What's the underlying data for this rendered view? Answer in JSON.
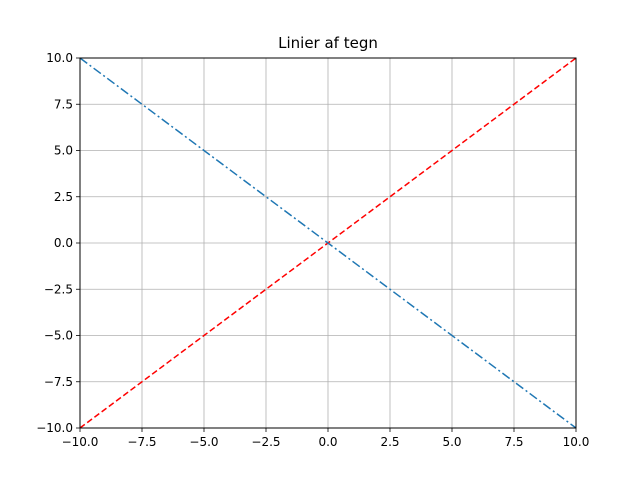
{
  "chart_data": {
    "type": "line",
    "title": "Linier af tegn",
    "xlabel": "",
    "ylabel": "",
    "xlim": [
      -10,
      10
    ],
    "ylim": [
      -10,
      10
    ],
    "grid": true,
    "x_ticks": [
      -10.0,
      -7.5,
      -5.0,
      -2.5,
      0.0,
      2.5,
      5.0,
      7.5,
      10.0
    ],
    "y_ticks": [
      -10.0,
      -7.5,
      -5.0,
      -2.5,
      0.0,
      2.5,
      5.0,
      7.5,
      10.0
    ],
    "x_tick_labels": [
      "−10.0",
      "−7.5",
      "−5.0",
      "−2.5",
      "0.0",
      "2.5",
      "5.0",
      "7.5",
      "10.0"
    ],
    "y_tick_labels": [
      "−10.0",
      "−7.5",
      "−5.0",
      "−2.5",
      "0.0",
      "2.5",
      "5.0",
      "7.5",
      "10.0"
    ],
    "series": [
      {
        "x": [
          -10,
          10
        ],
        "y": [
          -10,
          10
        ],
        "color": "#ff0000",
        "linestyle": "dashed"
      },
      {
        "x": [
          -10,
          10
        ],
        "y": [
          10,
          -10
        ],
        "color": "#1f77b4",
        "linestyle": "dashdot"
      }
    ]
  }
}
